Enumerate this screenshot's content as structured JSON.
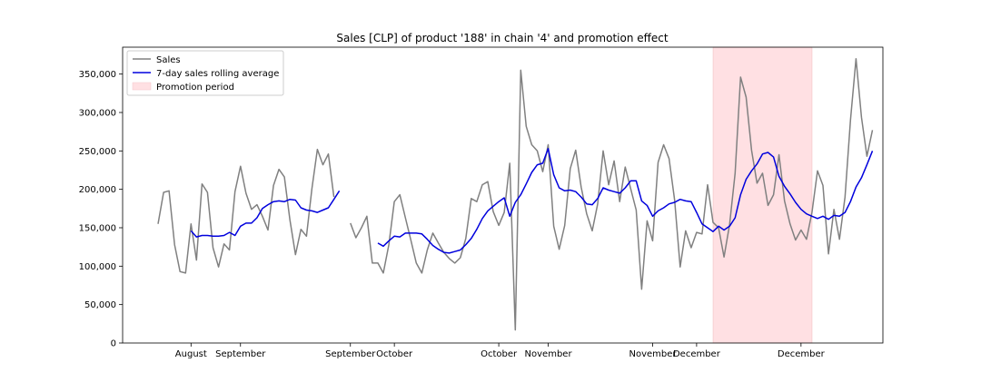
{
  "chart_data": {
    "type": "line",
    "title": "Sales [CLP] of product '188' in chain '4' and promotion effect",
    "xlabel": "",
    "ylabel": "",
    "ylim": [
      0,
      385000
    ],
    "y_ticks": [
      0,
      50000,
      100000,
      150000,
      200000,
      250000,
      300000,
      350000
    ],
    "y_tick_labels": [
      "0",
      "50,000",
      "100,000",
      "150,000",
      "200,000",
      "250,000",
      "300,000",
      "350,000"
    ],
    "x_ticks": [
      {
        "index": 6,
        "label": "August"
      },
      {
        "index": 15,
        "label": "September"
      },
      {
        "index": 35,
        "label": "September"
      },
      {
        "index": 43,
        "label": "October"
      },
      {
        "index": 62,
        "label": "October"
      },
      {
        "index": 71,
        "label": "November"
      },
      {
        "index": 90,
        "label": "November"
      },
      {
        "index": 98,
        "label": "December"
      },
      {
        "index": 117,
        "label": "December"
      }
    ],
    "grid": false,
    "legend": {
      "position": "upper-left",
      "entries": [
        "Sales",
        "7-day sales rolling average",
        "Promotion period"
      ]
    },
    "promotion": {
      "start": 101,
      "end": 119,
      "color": "#ffe0e3"
    },
    "series": [
      {
        "name": "Sales",
        "color": "#808080",
        "values": [
          155000,
          196000,
          198000,
          128000,
          93000,
          91000,
          155000,
          108000,
          207000,
          196000,
          124000,
          99000,
          129000,
          121000,
          197000,
          230000,
          195000,
          174000,
          180000,
          165000,
          147000,
          205000,
          226000,
          216000,
          160000,
          115000,
          148000,
          139000,
          201000,
          252000,
          232000,
          246000,
          190000,
          null,
          null,
          156000,
          137000,
          150000,
          165000,
          104000,
          104000,
          91000,
          128000,
          184000,
          193000,
          163000,
          134000,
          104000,
          91000,
          121000,
          143000,
          130000,
          118000,
          110000,
          104000,
          111000,
          136000,
          188000,
          184000,
          206000,
          210000,
          171000,
          153000,
          170000,
          234000,
          17000,
          355000,
          282000,
          258000,
          250000,
          223000,
          258000,
          152000,
          122000,
          153000,
          227000,
          251000,
          203000,
          168000,
          146000,
          181000,
          250000,
          206000,
          237000,
          184000,
          229000,
          201000,
          173000,
          70000,
          159000,
          133000,
          235000,
          258000,
          240000,
          186000,
          99000,
          146000,
          124000,
          144000,
          142000,
          206000,
          157000,
          150000,
          112000,
          154000,
          221000,
          346000,
          320000,
          251000,
          208000,
          221000,
          179000,
          193000,
          245000,
          185000,
          155000,
          134000,
          147000,
          135000,
          170000,
          224000,
          205000,
          116000,
          174000,
          135000,
          190000,
          290000,
          370000,
          294000,
          243000,
          277000
        ]
      },
      {
        "name": "7-day sales rolling average",
        "color": "#0000dd",
        "values": [
          null,
          null,
          null,
          null,
          null,
          null,
          146000,
          138000,
          140000,
          140000,
          139000,
          139000,
          140000,
          144000,
          140000,
          152000,
          156000,
          156000,
          163000,
          175000,
          180000,
          184000,
          185000,
          184000,
          187000,
          186000,
          176000,
          173000,
          172000,
          170000,
          173000,
          176000,
          187000,
          198000,
          null,
          null,
          null,
          null,
          null,
          null,
          130000,
          126000,
          133000,
          139000,
          138000,
          143000,
          143000,
          143000,
          142000,
          135000,
          127000,
          122000,
          118000,
          117000,
          119000,
          121000,
          128000,
          136000,
          148000,
          162000,
          172000,
          178000,
          184000,
          189000,
          165000,
          183000,
          193000,
          207000,
          222000,
          232000,
          234000,
          253000,
          219000,
          202000,
          198000,
          199000,
          197000,
          190000,
          181000,
          180000,
          188000,
          202000,
          199000,
          197000,
          195000,
          202000,
          211000,
          211000,
          185000,
          179000,
          165000,
          172000,
          176000,
          181000,
          183000,
          187000,
          185000,
          184000,
          170000,
          155000,
          150000,
          145000,
          152000,
          147000,
          152000,
          163000,
          193000,
          213000,
          224000,
          233000,
          246000,
          248000,
          242000,
          217000,
          204000,
          194000,
          183000,
          174000,
          168000,
          165000,
          162000,
          165000,
          161000,
          166000,
          165000,
          170000,
          184000,
          203000,
          215000,
          232000,
          250000
        ]
      }
    ]
  }
}
